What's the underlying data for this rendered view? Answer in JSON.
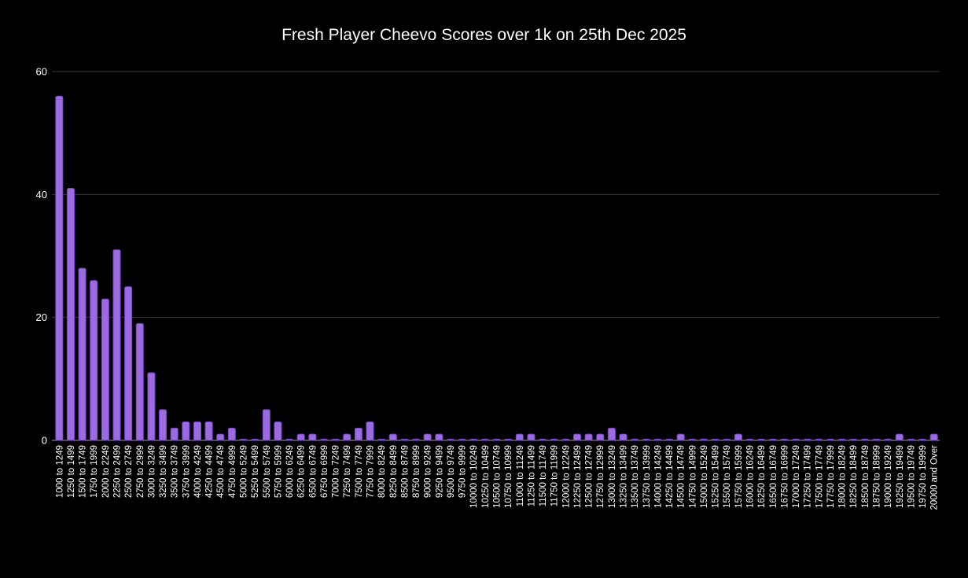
{
  "chart_data": {
    "type": "bar",
    "title": "Fresh Player Cheevo Scores over 1k on 25th Dec 2025",
    "xlabel": "",
    "ylabel": "",
    "ylim": [
      0,
      60
    ],
    "yticks": [
      0,
      20,
      40,
      60
    ],
    "grid": true,
    "legend": "none",
    "bar_color": "#9b6be0",
    "bar_edge_color": "#7a3fd0",
    "background": "#000000",
    "gridline_color": "#3a3a3a",
    "text_color": "#ffffff",
    "categories": [
      "1000 to 1249",
      "1250 to 1499",
      "1500 to 1749",
      "1750 to 1999",
      "2000 to 2249",
      "2250 to 2499",
      "2500 to 2749",
      "2750 to 2999",
      "3000 to 3249",
      "3250 to 3499",
      "3500 to 3749",
      "3750 to 3999",
      "4000 to 4249",
      "4250 to 4499",
      "4500 to 4749",
      "4750 to 4999",
      "5000 to 5249",
      "5250 to 5499",
      "5500 to 5749",
      "5750 to 5999",
      "6000 to 6249",
      "6250 to 6499",
      "6500 to 6749",
      "6750 to 6999",
      "7000 to 7249",
      "7250 to 7499",
      "7500 to 7749",
      "7750 to 7999",
      "8000 to 8249",
      "8250 to 8499",
      "8500 to 8749",
      "8750 to 8999",
      "9000 to 9249",
      "9250 to 9499",
      "9500 to 9749",
      "9750 to 9999",
      "10000 to 10249",
      "10250 to 10499",
      "10500 to 10749",
      "10750 to 10999",
      "11000 to 11249",
      "11250 to 11499",
      "11500 to 11749",
      "11750 to 11999",
      "12000 to 12249",
      "12250 to 12499",
      "12500 to 12749",
      "12750 to 12999",
      "13000 to 13249",
      "13250 to 13499",
      "13500 to 13749",
      "13750 to 13999",
      "14000 to 14249",
      "14250 to 14499",
      "14500 to 14749",
      "14750 to 14999",
      "15000 to 15249",
      "15250 to 15499",
      "15500 to 15749",
      "15750 to 15999",
      "16000 to 16249",
      "16250 to 16499",
      "16500 to 16749",
      "16750 to 16999",
      "17000 to 17249",
      "17250 to 17499",
      "17500 to 17749",
      "17750 to 17999",
      "18000 to 18249",
      "18250 to 18499",
      "18500 to 18749",
      "18750 to 18999",
      "19000 to 19249",
      "19250 to 19499",
      "19500 to 19749",
      "19750 to 19999",
      "20000 and Over"
    ],
    "values": [
      56,
      41,
      28,
      26,
      23,
      31,
      25,
      19,
      11,
      5,
      2,
      3,
      3,
      3,
      1,
      2,
      0,
      0,
      5,
      3,
      0,
      1,
      1,
      0,
      0,
      1,
      2,
      3,
      0,
      1,
      0,
      0,
      1,
      1,
      0,
      0,
      0,
      0,
      0,
      0,
      1,
      1,
      0,
      0,
      0,
      1,
      1,
      1,
      2,
      1,
      0,
      0,
      0,
      0,
      1,
      0,
      0,
      0,
      0,
      1,
      0,
      0,
      0,
      0,
      0,
      0,
      0,
      0,
      0,
      0,
      0,
      0,
      0,
      1,
      0,
      0,
      1
    ]
  }
}
